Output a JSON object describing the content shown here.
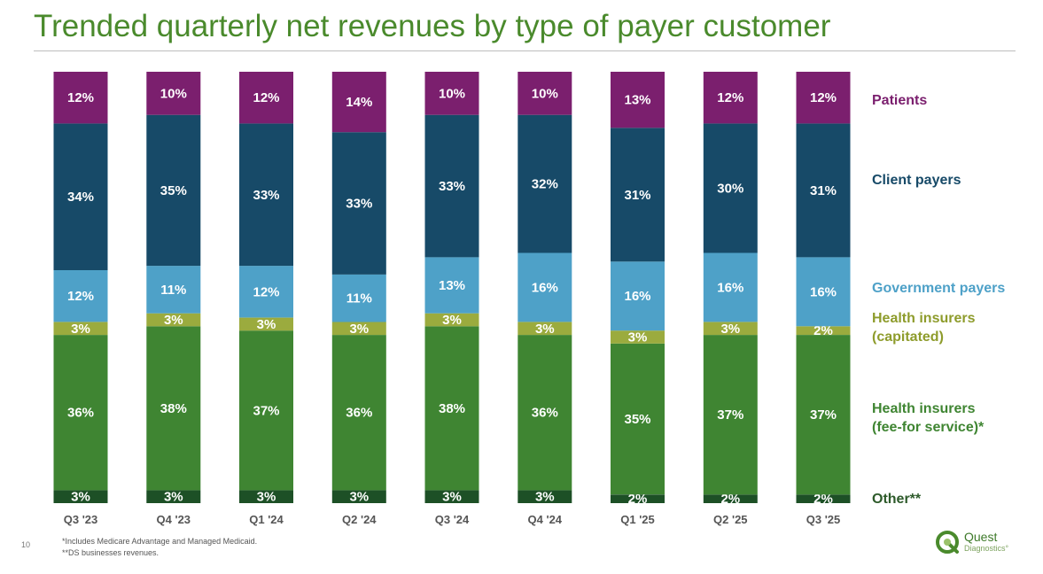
{
  "title": "Trended quarterly net revenues by type of payer customer",
  "page_number": "10",
  "footnotes": [
    "*Includes Medicare Advantage and Managed Medicaid.",
    "**DS businesses revenues."
  ],
  "logo": {
    "name": "Quest",
    "sub": "Diagnostics°"
  },
  "colors": {
    "Patients": "#7b1f6e",
    "Client payers": "#174a68",
    "Government payers": "#4ea1c8",
    "Health insurers (capitated)": "#9bab3e",
    "Health insurers (fee-for service)*": "#3f8532",
    "Other**": "#1d5026"
  },
  "chart_data": {
    "type": "bar",
    "stacked": true,
    "categories": [
      "Q3 '23",
      "Q4 '23",
      "Q1 '24",
      "Q2 '24",
      "Q3 '24",
      "Q4 '24",
      "Q1 '25",
      "Q2 '25",
      "Q3 '25"
    ],
    "series": [
      {
        "name": "Other**",
        "values": [
          3,
          3,
          3,
          3,
          3,
          3,
          2,
          2,
          2
        ]
      },
      {
        "name": "Health insurers (fee-for service)*",
        "values": [
          36,
          38,
          37,
          36,
          38,
          36,
          35,
          37,
          37
        ]
      },
      {
        "name": "Health insurers (capitated)",
        "values": [
          3,
          3,
          3,
          3,
          3,
          3,
          3,
          3,
          2
        ]
      },
      {
        "name": "Government payers",
        "values": [
          12,
          11,
          12,
          11,
          13,
          16,
          16,
          16,
          16
        ]
      },
      {
        "name": "Client payers",
        "values": [
          34,
          35,
          33,
          33,
          33,
          32,
          31,
          30,
          31
        ]
      },
      {
        "name": "Patients",
        "values": [
          12,
          10,
          12,
          14,
          10,
          10,
          13,
          12,
          12
        ]
      }
    ],
    "value_suffix": "%",
    "legend": {
      "position": "right",
      "entries": [
        {
          "series": "Patients",
          "lines": [
            "Patients"
          ]
        },
        {
          "series": "Client payers",
          "lines": [
            "Client payers"
          ]
        },
        {
          "series": "Government payers",
          "lines": [
            "Government payers"
          ]
        },
        {
          "series": "Health insurers (capitated)",
          "lines": [
            "Health insurers",
            "(capitated)"
          ]
        },
        {
          "series": "Health insurers (fee-for service)*",
          "lines": [
            "Health insurers",
            "(fee-for service)*"
          ]
        },
        {
          "series": "Other**",
          "lines": [
            "Other**"
          ]
        }
      ]
    },
    "ylim": [
      0,
      100
    ],
    "grid": false
  }
}
